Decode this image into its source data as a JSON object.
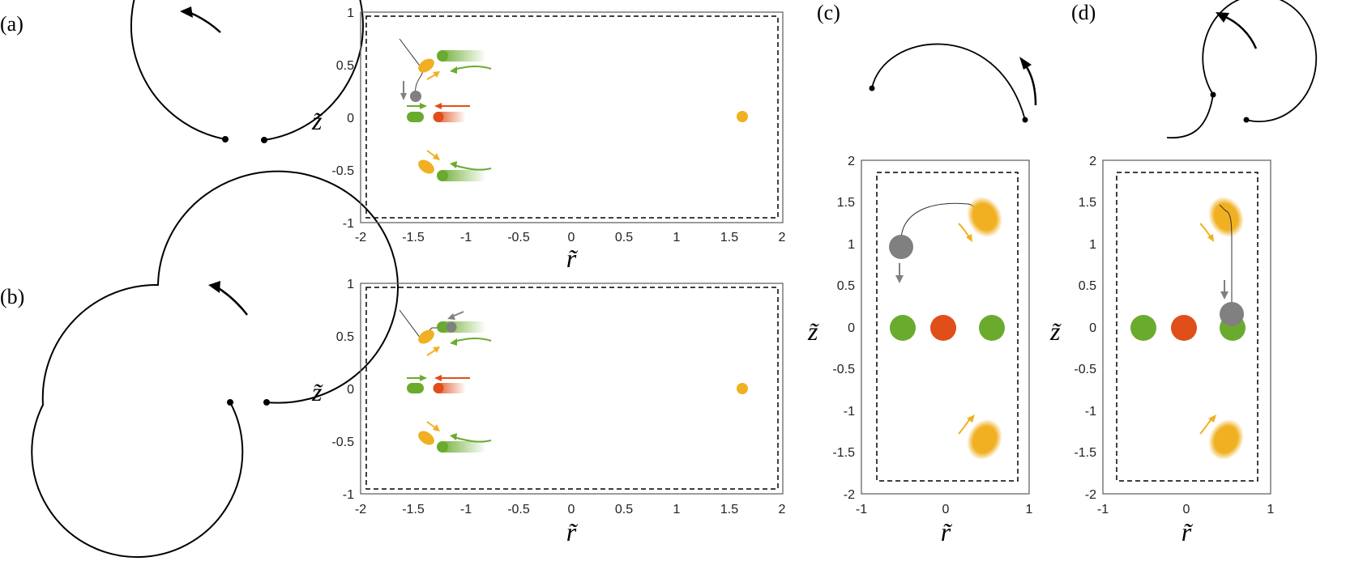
{
  "panel_labels": {
    "a": "(a)",
    "b": "(b)",
    "c": "(c)",
    "d": "(d)"
  },
  "axes": {
    "r_label": "r̃",
    "z_label": "z̃",
    "wide_x_ticks": [
      "-2",
      "-1.5",
      "-1",
      "-0.5",
      "0",
      "0.5",
      "1",
      "1.5",
      "2"
    ],
    "wide_y_ticks": [
      "1",
      "0.5",
      "0",
      "-0.5",
      "-1"
    ],
    "tall_x_ticks": [
      "-1",
      "0",
      "1"
    ],
    "tall_y_ticks": [
      "2",
      "1.5",
      "1",
      "0.5",
      "0",
      "-0.5",
      "-1",
      "-1.5",
      "-2"
    ]
  },
  "colors": {
    "green": "#6aab2e",
    "orange": "#f0b021",
    "red": "#e04e1a",
    "gray": "#808080",
    "black": "#000000"
  }
}
